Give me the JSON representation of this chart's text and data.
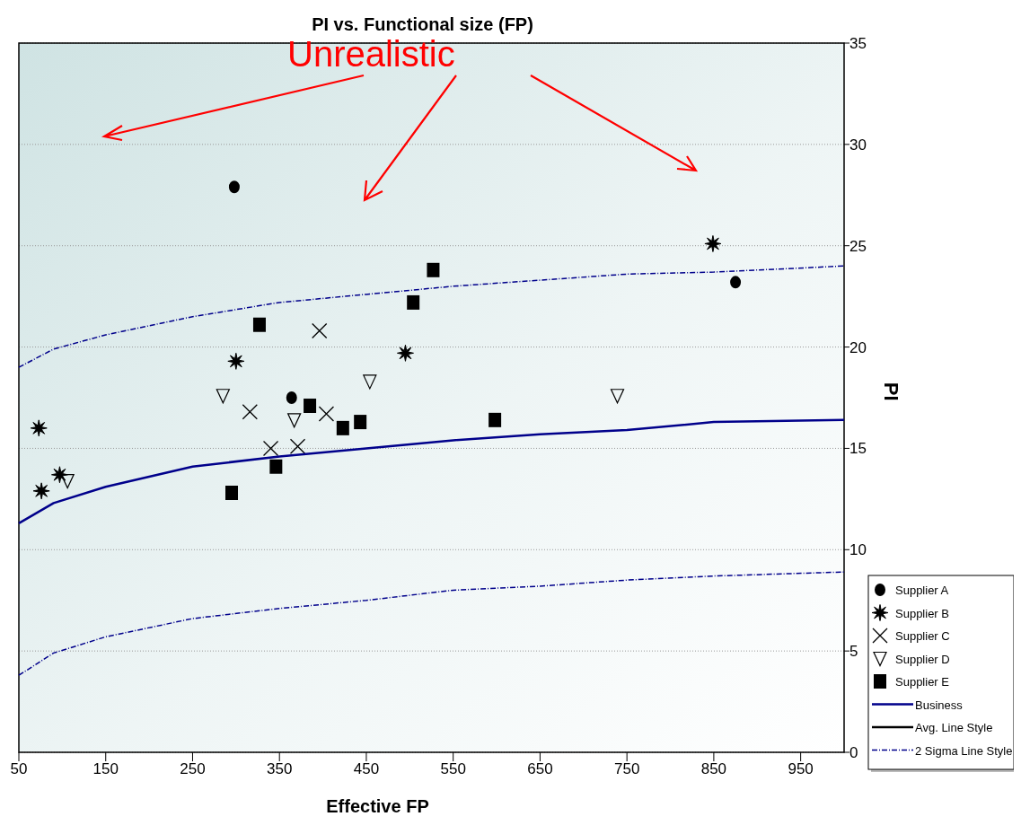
{
  "chart_data": {
    "type": "scatter",
    "title": "PI vs. Functional size (FP)",
    "xlabel": "Effective FP",
    "ylabel": "PI",
    "xlim": [
      50,
      1000
    ],
    "xticks": [
      50,
      150,
      250,
      350,
      450,
      550,
      650,
      750,
      850,
      950
    ],
    "ylim": [
      0,
      35
    ],
    "yticks": [
      0,
      5,
      10,
      15,
      20,
      25,
      30,
      35
    ],
    "grid": "y",
    "legend": "bottom right",
    "annotations": [
      "Unrealistic"
    ],
    "series": [
      {
        "name": "Supplier A",
        "color": "#000000",
        "marker": "circle",
        "x": [
          298,
          364,
          875
        ],
        "values": [
          27.9,
          17.5,
          23.2
        ]
      },
      {
        "name": "Supplier B",
        "color": "#000000",
        "marker": "star",
        "x": [
          73,
          76,
          97,
          300,
          495,
          849
        ],
        "values": [
          16.0,
          12.9,
          13.7,
          19.3,
          19.7,
          25.1
        ]
      },
      {
        "name": "Supplier C",
        "color": "#000000",
        "marker": "cross",
        "x": [
          316,
          340,
          371,
          396,
          404
        ],
        "values": [
          16.8,
          15.0,
          15.1,
          20.8,
          16.7
        ]
      },
      {
        "name": "Supplier D",
        "color": "#000000",
        "marker": "triangle",
        "x": [
          106,
          285,
          367,
          454,
          739
        ],
        "values": [
          13.4,
          17.6,
          16.4,
          18.3,
          17.6
        ]
      },
      {
        "name": "Supplier E",
        "color": "#000000",
        "marker": "square",
        "x": [
          295,
          327,
          346,
          385,
          423,
          443,
          504,
          527,
          598
        ],
        "values": [
          12.8,
          21.1,
          14.1,
          17.1,
          16.0,
          16.3,
          22.2,
          23.8,
          16.4
        ]
      },
      {
        "name": "Business",
        "type": "line",
        "color": "#00008b",
        "line_style": "solid",
        "x": [
          50,
          90,
          150,
          250,
          350,
          450,
          550,
          650,
          750,
          850,
          1000
        ],
        "values": [
          11.3,
          12.3,
          13.1,
          14.1,
          14.6,
          15.0,
          15.4,
          15.7,
          15.9,
          16.3,
          16.4
        ]
      },
      {
        "name": "Avg. Line Style",
        "type": "line",
        "color": "#000000",
        "line_style": "solid"
      },
      {
        "name": "2 Sigma Line Style",
        "type": "line",
        "color": "#00008b",
        "line_style": "dashed",
        "x": [
          50,
          90,
          150,
          250,
          350,
          450,
          550,
          650,
          750,
          850,
          1000
        ],
        "values": [
          19.0,
          19.9,
          20.6,
          21.5,
          22.2,
          22.6,
          23.0,
          23.3,
          23.6,
          23.7,
          24.0
        ]
      },
      {
        "type": "line",
        "color": "#00008b",
        "line_style": "dashed",
        "x": [
          50,
          90,
          150,
          250,
          350,
          450,
          550,
          650,
          750,
          850,
          1000
        ],
        "values": [
          3.8,
          4.9,
          5.7,
          6.6,
          7.1,
          7.5,
          8.0,
          8.2,
          8.5,
          8.7,
          8.9
        ]
      }
    ]
  }
}
